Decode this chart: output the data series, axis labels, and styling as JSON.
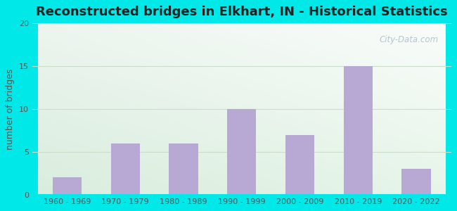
{
  "title": "Reconstructed bridges in Elkhart, IN - Historical Statistics",
  "categories": [
    "1960 - 1969",
    "1970 - 1979",
    "1980 - 1989",
    "1990 - 1999",
    "2000 - 2009",
    "2010 - 2019",
    "2020 - 2022"
  ],
  "values": [
    2,
    6,
    6,
    10,
    7,
    15,
    3
  ],
  "bar_color": "#b8a9d4",
  "ylim": [
    0,
    20
  ],
  "yticks": [
    0,
    5,
    10,
    15,
    20
  ],
  "ylabel": "number of bridges",
  "background_outer": "#00e8e8",
  "title_fontsize": 13,
  "tick_fontsize": 8,
  "ylabel_fontsize": 9,
  "title_color": "#222222",
  "tick_color": "#555555",
  "ylabel_color": "#555555",
  "watermark_text": "City-Data.com",
  "watermark_color": "#aabbcc",
  "grid_color": "#ccddcc",
  "bar_gap_color": "#00e8e8"
}
